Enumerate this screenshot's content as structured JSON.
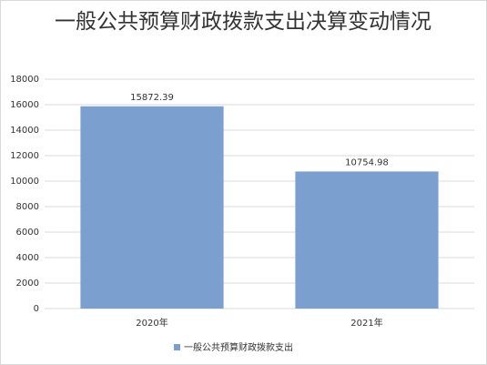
{
  "chart_data": {
    "type": "bar",
    "title": "一般公共预算财政拨款支出决算变动情况",
    "categories": [
      "2020年",
      "2021年"
    ],
    "series": [
      {
        "name": "一般公共预算财政拨款支出",
        "color": "#7b9fcf",
        "values": [
          15872.39,
          10754.98
        ]
      }
    ],
    "ylim": [
      0,
      18000
    ],
    "yticks": [
      0,
      2000,
      4000,
      6000,
      8000,
      10000,
      12000,
      14000,
      16000,
      18000
    ],
    "grid": true,
    "legend": "bottom"
  }
}
